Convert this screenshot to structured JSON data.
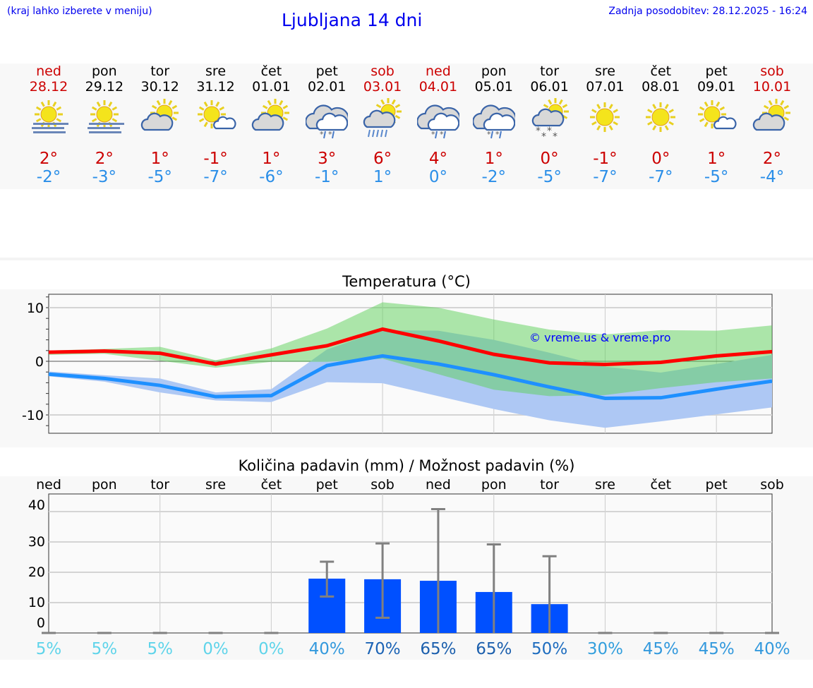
{
  "header": {
    "hint": "(kraj lahko izberete v meniju)",
    "title": "Ljubljana 14 dni",
    "updated": "Zadnja posodobitev: 28.12.2025 - 16:24"
  },
  "days": [
    {
      "name": "ned",
      "date": "28.12",
      "weekend": true,
      "icon": "fog-sun",
      "max": "2°",
      "min": "-2°"
    },
    {
      "name": "pon",
      "date": "29.12",
      "weekend": false,
      "icon": "fog-sun",
      "max": "2°",
      "min": "-3°"
    },
    {
      "name": "tor",
      "date": "30.12",
      "weekend": false,
      "icon": "sun-cloud",
      "max": "1°",
      "min": "-5°"
    },
    {
      "name": "sre",
      "date": "31.12",
      "weekend": false,
      "icon": "sun-small-cloud",
      "max": "-1°",
      "min": "-7°"
    },
    {
      "name": "čet",
      "date": "01.01",
      "weekend": false,
      "icon": "sun-cloud",
      "max": "1°",
      "min": "-6°"
    },
    {
      "name": "pet",
      "date": "02.01",
      "weekend": false,
      "icon": "cloud-sleet",
      "max": "3°",
      "min": "-1°"
    },
    {
      "name": "sob",
      "date": "03.01",
      "weekend": true,
      "icon": "sun-cloud-rain",
      "max": "6°",
      "min": "1°"
    },
    {
      "name": "ned",
      "date": "04.01",
      "weekend": true,
      "icon": "cloud-sleet",
      "max": "4°",
      "min": "0°"
    },
    {
      "name": "pon",
      "date": "05.01",
      "weekend": false,
      "icon": "cloud-sleet",
      "max": "1°",
      "min": "-2°"
    },
    {
      "name": "tor",
      "date": "06.01",
      "weekend": false,
      "icon": "sun-cloud-snow",
      "max": "0°",
      "min": "-5°"
    },
    {
      "name": "sre",
      "date": "07.01",
      "weekend": false,
      "icon": "sun",
      "max": "-1°",
      "min": "-7°"
    },
    {
      "name": "čet",
      "date": "08.01",
      "weekend": false,
      "icon": "sun",
      "max": "0°",
      "min": "-7°"
    },
    {
      "name": "pet",
      "date": "09.01",
      "weekend": false,
      "icon": "sun-small-cloud",
      "max": "1°",
      "min": "-5°"
    },
    {
      "name": "sob",
      "date": "10.01",
      "weekend": true,
      "icon": "sun-cloud",
      "max": "2°",
      "min": "-4°"
    }
  ],
  "colors": {
    "max": "#cc0000",
    "min": "#2a8ee8",
    "link": "#0000ee",
    "bar": "#0050ff",
    "maxLine": "#ff0000",
    "minLine": "#1e90ff",
    "maxBand": "#aee9ac",
    "minBand": "#aec8f4",
    "overlap": "#7fc6a8"
  },
  "chart_data": [
    {
      "type": "line",
      "title": "Temperatura (°C)",
      "watermark": "© vreme.us & vreme.pro",
      "ylim": [
        -13.3,
        12.6
      ],
      "yticks": [
        -10,
        0,
        10
      ],
      "grid": true,
      "series": [
        {
          "values": [
            1.7,
            1.9,
            1.5,
            -0.5,
            1.2,
            2.9,
            6.0,
            3.8,
            1.3,
            -0.3,
            -0.6,
            -0.2,
            1.0,
            1.8
          ],
          "band_upper": [
            2.0,
            2.3,
            2.7,
            0.2,
            2.4,
            6.1,
            11.0,
            10.0,
            7.8,
            5.9,
            5.0,
            5.8,
            5.7,
            6.7
          ],
          "band_lower": [
            1.2,
            1.4,
            0.1,
            -1.2,
            -0.1,
            -0.1,
            0.5,
            -2.4,
            -5.3,
            -6.5,
            -6.3,
            -5.0,
            -3.9,
            -3.2
          ]
        },
        {
          "values": [
            -2.4,
            -3.2,
            -4.5,
            -6.6,
            -6.4,
            -0.8,
            1.0,
            -0.5,
            -2.5,
            -4.8,
            -6.9,
            -6.8,
            -5.2,
            -3.7
          ],
          "band_upper": [
            -1.9,
            -2.6,
            -3.2,
            -5.8,
            -5.2,
            2.2,
            5.8,
            5.7,
            4.0,
            1.6,
            -1.0,
            -2.1,
            -0.5,
            1.2
          ],
          "band_lower": [
            -2.8,
            -3.8,
            -5.8,
            -7.3,
            -7.6,
            -3.9,
            -4.1,
            -6.5,
            -8.9,
            -11.0,
            -12.4,
            -11.2,
            -9.9,
            -8.6
          ]
        }
      ]
    },
    {
      "type": "bar",
      "title": "Količina padavin (mm) / Možnost padavin (%)",
      "categories": [
        "ned",
        "pon",
        "tor",
        "sre",
        "čet",
        "pet",
        "sob",
        "ned",
        "pon",
        "tor",
        "sre",
        "čet",
        "pet",
        "sob"
      ],
      "ylim": [
        0,
        42
      ],
      "yticks": [
        0,
        10,
        20,
        30,
        40
      ],
      "grid": true,
      "values": [
        0,
        0,
        0,
        0,
        0,
        17.9,
        17.7,
        17.2,
        13.5,
        9.5,
        0,
        0,
        0,
        0
      ],
      "err_low": [
        0,
        0,
        0,
        0,
        0,
        12,
        5,
        0,
        0,
        0,
        0,
        0,
        0,
        0
      ],
      "err_high": [
        0,
        0,
        0,
        0,
        0,
        23.5,
        29.5,
        40.8,
        29.2,
        25.3,
        0,
        0,
        0,
        0
      ],
      "probability": [
        "5%",
        "5%",
        "5%",
        "0%",
        "0%",
        "40%",
        "70%",
        "65%",
        "65%",
        "50%",
        "30%",
        "45%",
        "45%",
        "40%"
      ],
      "probability_colors": [
        "#5fd4ea",
        "#5fd4ea",
        "#5fd4ea",
        "#5fd4ea",
        "#5fd4ea",
        "#3399dd",
        "#1b63b5",
        "#1b5fad",
        "#1b5fad",
        "#1d6cbf",
        "#339fdd",
        "#3399dd",
        "#3399dd",
        "#3399dd"
      ]
    }
  ]
}
